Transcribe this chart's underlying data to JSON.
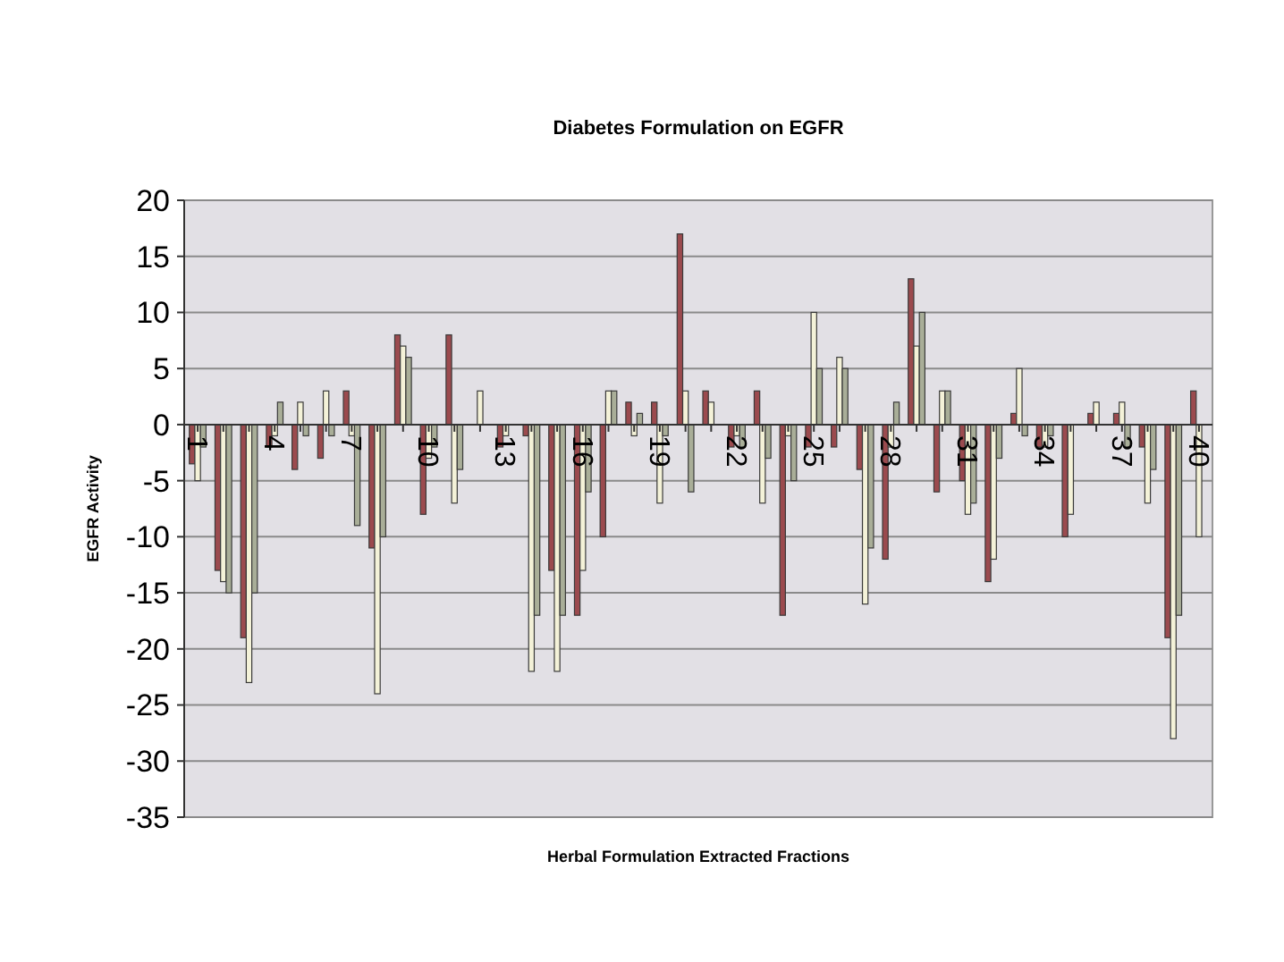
{
  "chart_data": {
    "type": "bar",
    "title": "Diabetes Formulation on EGFR",
    "xlabel": "Herbal Formulation Extracted Fractions",
    "ylabel": "EGFR Activity",
    "categories": [
      "1",
      null,
      null,
      "4",
      null,
      null,
      "7",
      null,
      null,
      "10",
      null,
      null,
      "13",
      null,
      null,
      "16",
      null,
      null,
      "19",
      null,
      null,
      "22",
      null,
      null,
      "25",
      null,
      null,
      "28",
      null,
      null,
      "31",
      null,
      null,
      "34",
      null,
      null,
      "37",
      null,
      null,
      "40"
    ],
    "series": [
      {
        "color": "#9b4a4e",
        "values": [
          -3.5,
          -13,
          -19,
          -2,
          -4,
          -3,
          3,
          -11,
          8,
          -8,
          8,
          0,
          -2,
          -1,
          -13,
          -17,
          -10,
          2,
          2,
          17,
          3,
          -2,
          3,
          -17,
          -2,
          -2,
          -4,
          -12,
          13,
          -6,
          -5,
          -14,
          1,
          -2,
          -10,
          1,
          1,
          -2,
          -19,
          3
        ]
      },
      {
        "color": "#f4f2d8",
        "values": [
          -5,
          -14,
          -23,
          -1,
          2,
          3,
          -1,
          -24,
          7,
          -3,
          -7,
          3,
          -1,
          -22,
          -22,
          -13,
          3,
          -1,
          -7,
          3,
          2,
          -1,
          -7,
          -1,
          10,
          6,
          -16,
          -2,
          7,
          3,
          -8,
          -12,
          5,
          -2,
          -8,
          2,
          2,
          -7,
          -28,
          -10
        ]
      },
      {
        "color": "#a9ae98",
        "values": [
          -2,
          -15,
          -15,
          2,
          -1,
          -1,
          -9,
          -10,
          6,
          -2,
          -4,
          0,
          0,
          -17,
          -17,
          -6,
          3,
          1,
          -1,
          -6,
          0,
          -2,
          -3,
          -5,
          5,
          5,
          -11,
          2,
          10,
          3,
          -7,
          -3,
          -1,
          -1,
          0,
          0,
          -2,
          -4,
          -17,
          0
        ]
      }
    ],
    "ylim": [
      -35,
      20
    ],
    "yticks": [
      -35,
      -30,
      -25,
      -20,
      -15,
      -10,
      -5,
      0,
      5,
      10,
      15,
      20
    ],
    "grid": "y"
  }
}
